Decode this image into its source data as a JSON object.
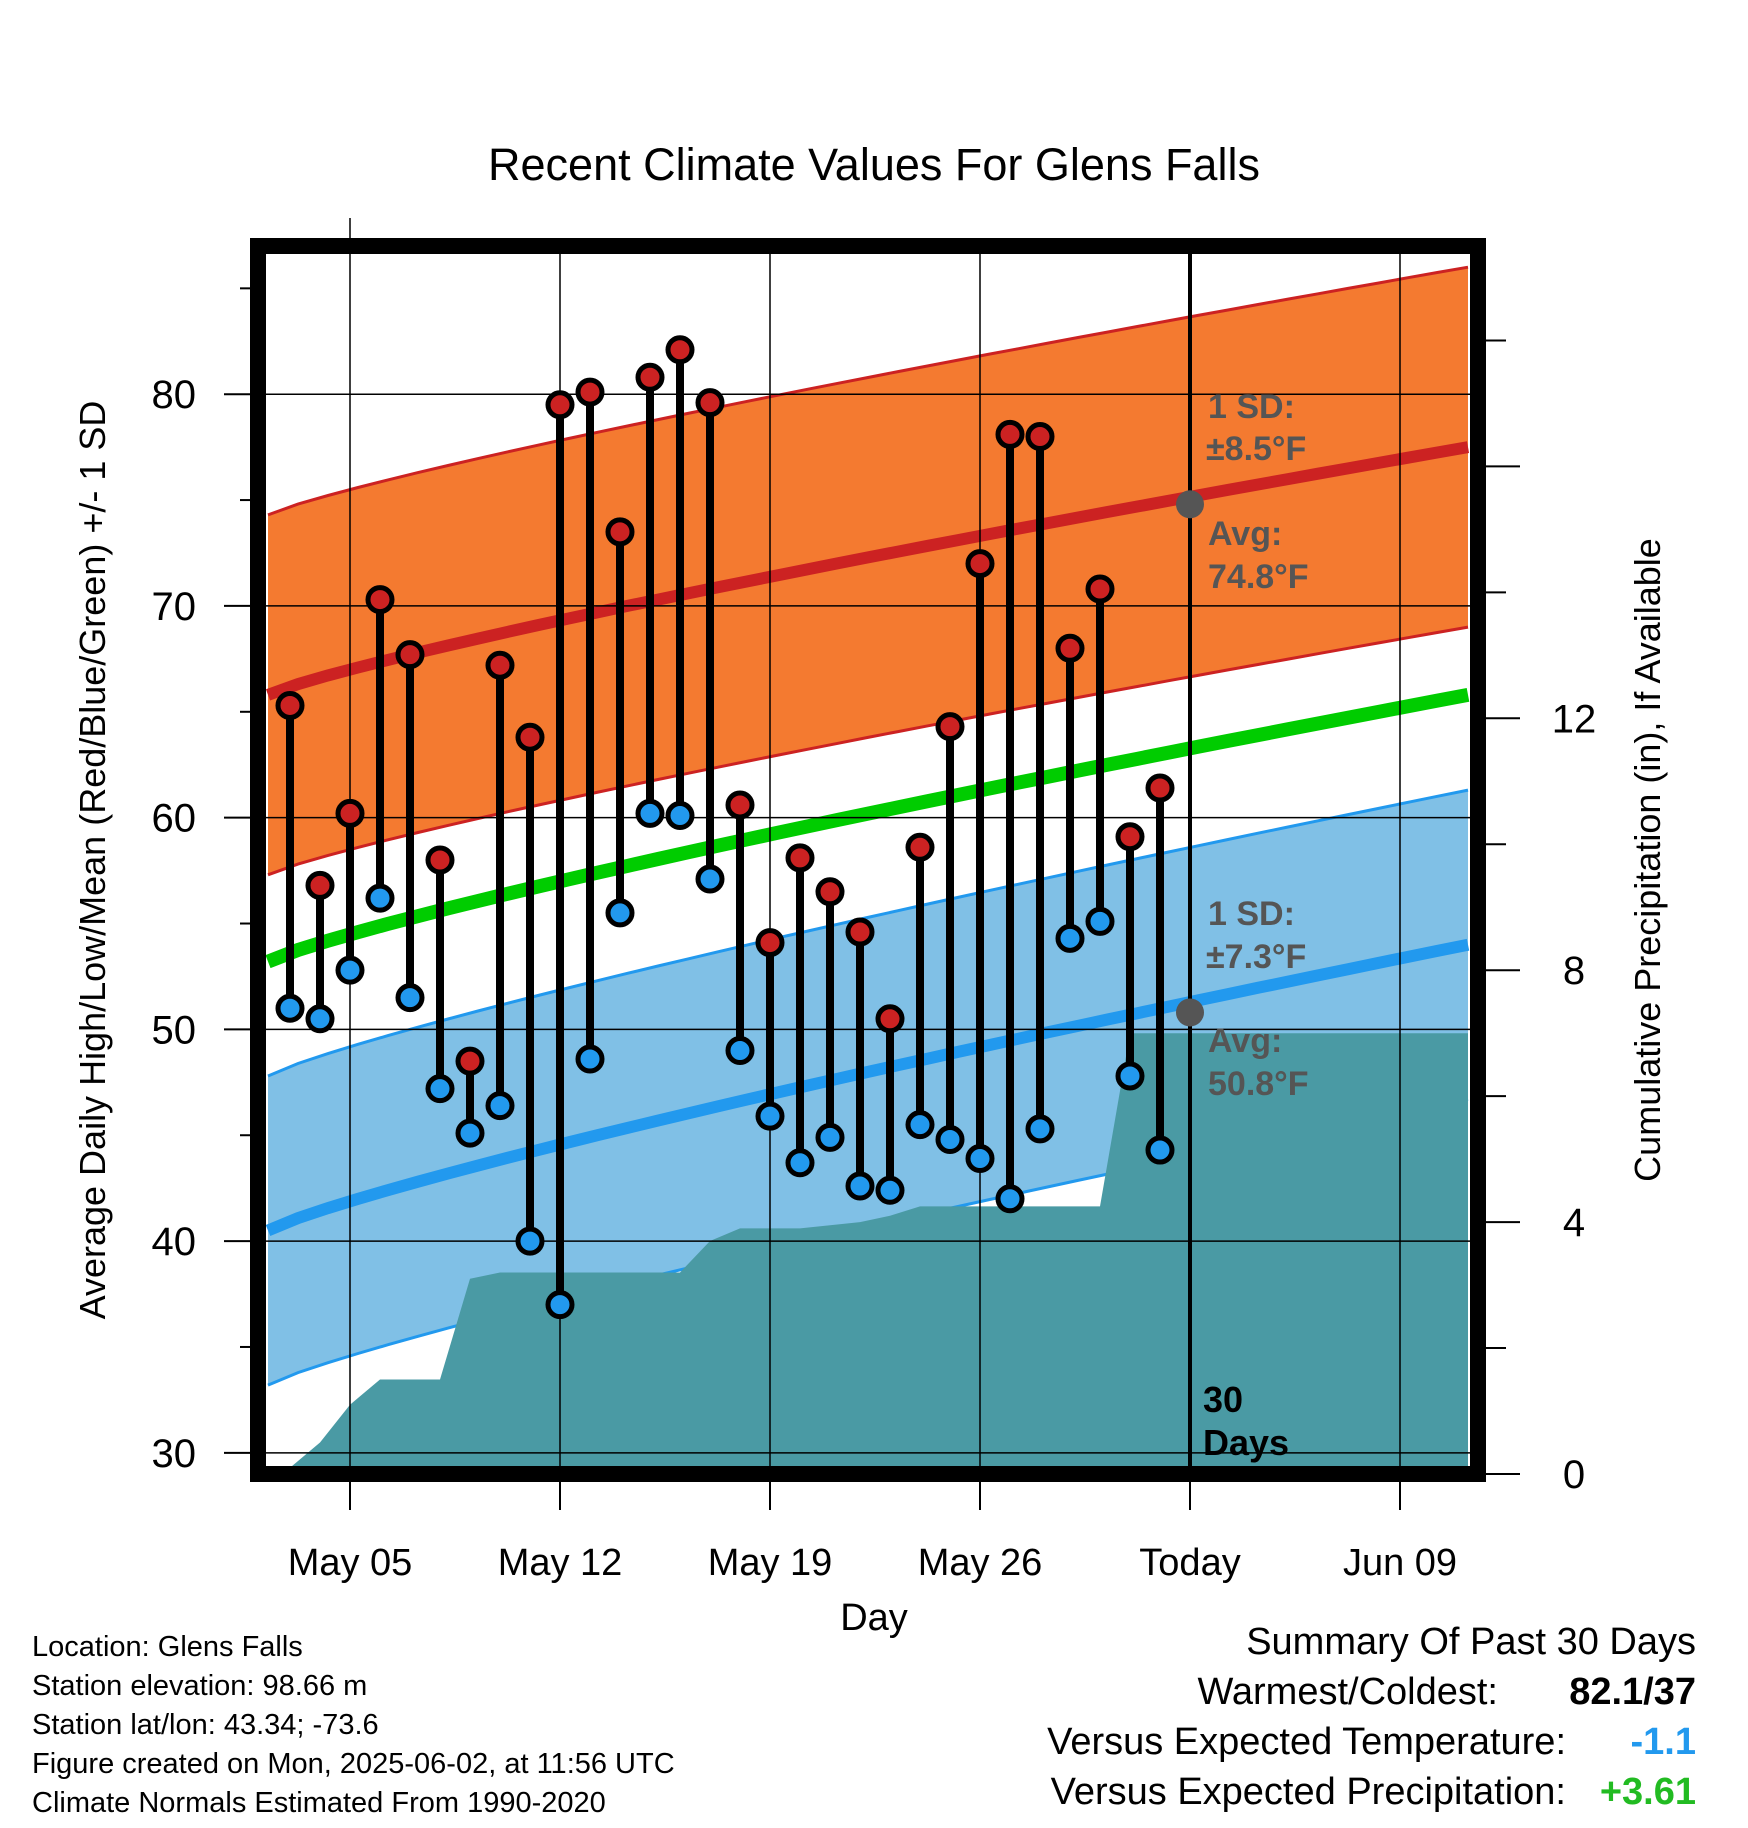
{
  "chart_data": {
    "type": "line",
    "title": "Recent Climate Values For Glens Falls",
    "xlabel": "Day",
    "ylabel": "Average Daily High/Low/Mean (Red/Blue/Green) +/- 1 SD",
    "y2label": "Cumulative Precipitation (in), If Available",
    "ylim": [
      29,
      87
    ],
    "y2lim": [
      0,
      19.5
    ],
    "yticks": [
      30,
      40,
      50,
      60,
      70,
      80
    ],
    "y2ticks": [
      0,
      4,
      8,
      12
    ],
    "xticks": [
      "May 05",
      "May 12",
      "May 19",
      "May 26",
      "Today",
      "Jun 09"
    ],
    "grid": true,
    "normals": {
      "high_mean": {
        "start": 65.8,
        "end": 77.5
      },
      "low_mean": {
        "start": 40.5,
        "end": 54.0
      },
      "mean": {
        "start": 53.2,
        "end": 65.8
      },
      "high_sd": 8.5,
      "low_sd": 7.3
    },
    "days": [
      {
        "high": 65.3,
        "low": 51.0
      },
      {
        "high": 56.8,
        "low": 50.5
      },
      {
        "high": 60.2,
        "low": 52.8
      },
      {
        "high": 70.3,
        "low": 56.2
      },
      {
        "high": 67.7,
        "low": 51.5
      },
      {
        "high": 58.0,
        "low": 47.2
      },
      {
        "high": 48.5,
        "low": 45.1
      },
      {
        "high": 67.2,
        "low": 46.4
      },
      {
        "high": 63.8,
        "low": 40.0
      },
      {
        "high": 79.5,
        "low": 37.0
      },
      {
        "high": 80.1,
        "low": 48.6
      },
      {
        "high": 73.5,
        "low": 55.5
      },
      {
        "high": 80.8,
        "low": 60.2
      },
      {
        "high": 82.1,
        "low": 60.1
      },
      {
        "high": 79.6,
        "low": 57.1
      },
      {
        "high": 60.6,
        "low": 49.0
      },
      {
        "high": 54.1,
        "low": 45.9
      },
      {
        "high": 58.1,
        "low": 43.7
      },
      {
        "high": 56.5,
        "low": 44.9
      },
      {
        "high": 54.6,
        "low": 42.6
      },
      {
        "high": 50.5,
        "low": 42.4
      },
      {
        "high": 58.6,
        "low": 45.5
      },
      {
        "high": 64.3,
        "low": 44.8
      },
      {
        "high": 72.0,
        "low": 43.9
      },
      {
        "high": 78.1,
        "low": 42.0
      },
      {
        "high": 78.0,
        "low": 45.3
      },
      {
        "high": 68.0,
        "low": 54.3
      },
      {
        "high": 70.8,
        "low": 55.1
      },
      {
        "high": 59.1,
        "low": 47.8
      },
      {
        "high": 61.4,
        "low": 44.3
      }
    ],
    "cumulative_precip": [
      0,
      0.1,
      0.5,
      1.1,
      1.5,
      1.5,
      1.5,
      3.1,
      3.2,
      3.2,
      3.2,
      3.2,
      3.2,
      3.2,
      3.2,
      3.7,
      3.9,
      3.9,
      3.9,
      3.95,
      4.0,
      4.1,
      4.25,
      4.25,
      4.25,
      4.25,
      4.25,
      4.25,
      4.25,
      7.0,
      7.0,
      7.0,
      7.0,
      7.0,
      7.0,
      7.0,
      7.0,
      7.0,
      7.0,
      7.0,
      7.0,
      7.0
    ],
    "annotations": {
      "high_sd_label": "1 SD:",
      "high_sd_value": "±8.5°F",
      "high_avg_label": "Avg:",
      "high_avg_value": "74.8°F",
      "low_sd_label": "1 SD:",
      "low_sd_value": "±7.3°F",
      "low_avg_label": "Avg:",
      "low_avg_value": "50.8°F",
      "today_avg_high": 74.8,
      "today_avg_low": 50.8,
      "window_count": "30",
      "window_unit": "Days"
    },
    "colors": {
      "high": "#cc2222",
      "low": "#2299ee",
      "mean": "#00cc00",
      "high_band": "#f47a30",
      "low_band": "#80c0e6",
      "precip": "#4a9aa4"
    }
  },
  "info": {
    "location": "Location: Glens Falls",
    "elevation": "Station elevation: 98.66 m",
    "latlon": "Station lat/lon: 43.34; -73.6",
    "created": "Figure created on Mon, 2025-06-02, at 11:56 UTC",
    "normals": "Climate Normals Estimated From 1990-2020"
  },
  "summary": {
    "title": "Summary Of Past 30 Days",
    "warmest_label": "Warmest/Coldest:",
    "warmest_value": "82.1/37",
    "temp_label": "Versus Expected Temperature:",
    "temp_value": "-1.1",
    "temp_color": "#2299ee",
    "precip_label": "Versus Expected Precipitation:",
    "precip_value": "+3.61",
    "precip_color": "#22bb22"
  }
}
